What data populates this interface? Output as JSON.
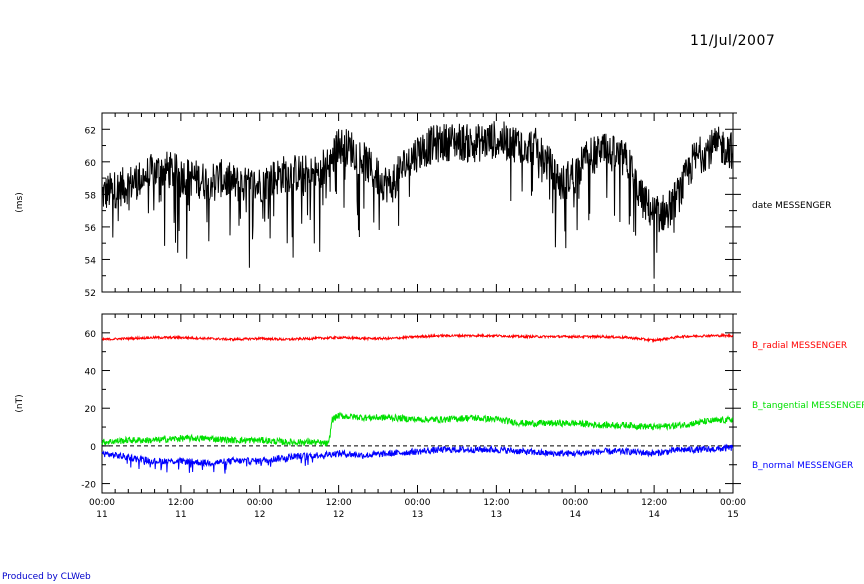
{
  "header": {
    "date": "11/Jul/2007"
  },
  "footer": {
    "credit": "Produced by CLWeb"
  },
  "chart_data": [
    {
      "type": "line",
      "ylabel": "(ms)",
      "ylim": [
        52,
        63
      ],
      "yticks": [
        52,
        54,
        56,
        58,
        60,
        62
      ],
      "xlim": [
        0,
        96
      ],
      "x_unit": "hours since 11 Jul 2007 00:00",
      "series": [
        {
          "name": "date MESSENGER",
          "color": "#000000",
          "x": [
            0,
            2,
            4,
            6,
            8,
            10,
            12,
            14,
            16,
            18,
            20,
            22,
            24,
            26,
            28,
            30,
            32,
            34,
            36,
            38,
            40,
            42,
            44,
            46,
            48,
            50,
            52,
            54,
            56,
            58,
            60,
            62,
            64,
            66,
            68,
            70,
            72,
            74,
            76,
            78,
            80,
            82,
            84,
            86,
            88,
            90,
            92,
            94,
            96
          ],
          "y": [
            58.0,
            58.3,
            58.6,
            59.0,
            59.4,
            59.5,
            59.2,
            59.0,
            58.8,
            59.0,
            58.7,
            58.5,
            58.6,
            59.0,
            59.3,
            59.3,
            59.2,
            59.4,
            61.0,
            60.8,
            60.0,
            59.0,
            58.5,
            59.8,
            60.6,
            61.0,
            61.2,
            61.3,
            61.1,
            61.2,
            61.4,
            61.2,
            61.1,
            60.9,
            59.8,
            58.6,
            59.4,
            60.3,
            60.6,
            60.4,
            60.0,
            57.8,
            56.8,
            56.9,
            58.2,
            60.1,
            60.7,
            61.0,
            60.7
          ]
        }
      ]
    },
    {
      "type": "line",
      "ylabel": "(nT)",
      "ylim": [
        -25,
        70
      ],
      "yticks": [
        -20,
        0,
        20,
        40,
        60
      ],
      "xlim": [
        0,
        96
      ],
      "x_unit": "hours since 11 Jul 2007 00:00",
      "zero_line": "dashed",
      "xticks": [
        {
          "x": 0,
          "time": "00:00",
          "day": "11"
        },
        {
          "x": 12,
          "time": "12:00",
          "day": "11"
        },
        {
          "x": 24,
          "time": "00:00",
          "day": "12"
        },
        {
          "x": 36,
          "time": "12:00",
          "day": "12"
        },
        {
          "x": 48,
          "time": "00:00",
          "day": "13"
        },
        {
          "x": 60,
          "time": "12:00",
          "day": "13"
        },
        {
          "x": 72,
          "time": "00:00",
          "day": "14"
        },
        {
          "x": 84,
          "time": "12:00",
          "day": "14"
        },
        {
          "x": 96,
          "time": "00:00",
          "day": "15"
        }
      ],
      "series": [
        {
          "name": "B_radial MESSENGER",
          "color": "#ff0000",
          "x": [
            0,
            4,
            8,
            12,
            16,
            20,
            24,
            28,
            32,
            36,
            40,
            44,
            48,
            52,
            56,
            60,
            64,
            68,
            72,
            76,
            80,
            84,
            88,
            92,
            96
          ],
          "y": [
            56.5,
            57.0,
            57.5,
            57.5,
            57.0,
            56.5,
            57.0,
            56.5,
            57.0,
            57.5,
            57.0,
            57.0,
            58.0,
            58.5,
            58.5,
            58.5,
            58.0,
            58.0,
            58.0,
            58.0,
            57.5,
            56.0,
            58.0,
            58.5,
            58.5
          ]
        },
        {
          "name": "B_tangential MESSENGER",
          "color": "#00e000",
          "x": [
            0,
            4,
            8,
            12,
            16,
            20,
            24,
            28,
            32,
            34.5,
            35,
            36,
            40,
            44,
            48,
            52,
            56,
            60,
            64,
            68,
            72,
            76,
            80,
            84,
            88,
            92,
            96
          ],
          "y": [
            2,
            3,
            3,
            4,
            4,
            3,
            3,
            2,
            2,
            1,
            14,
            16,
            15,
            15,
            14,
            14,
            15,
            14,
            12,
            12,
            12,
            11,
            11,
            10,
            11,
            13,
            14
          ]
        },
        {
          "name": "B_normal MESSENGER",
          "color": "#0000ff",
          "x": [
            0,
            4,
            8,
            12,
            16,
            20,
            24,
            28,
            32,
            36,
            40,
            44,
            48,
            52,
            56,
            60,
            64,
            68,
            72,
            76,
            80,
            84,
            88,
            92,
            96
          ],
          "y": [
            -4,
            -6,
            -8,
            -8,
            -9,
            -8,
            -8,
            -6,
            -5,
            -4,
            -5,
            -4,
            -3,
            -2,
            -2,
            -2,
            -3,
            -4,
            -4,
            -3,
            -3,
            -4,
            -2,
            -2,
            -1
          ]
        }
      ]
    }
  ]
}
